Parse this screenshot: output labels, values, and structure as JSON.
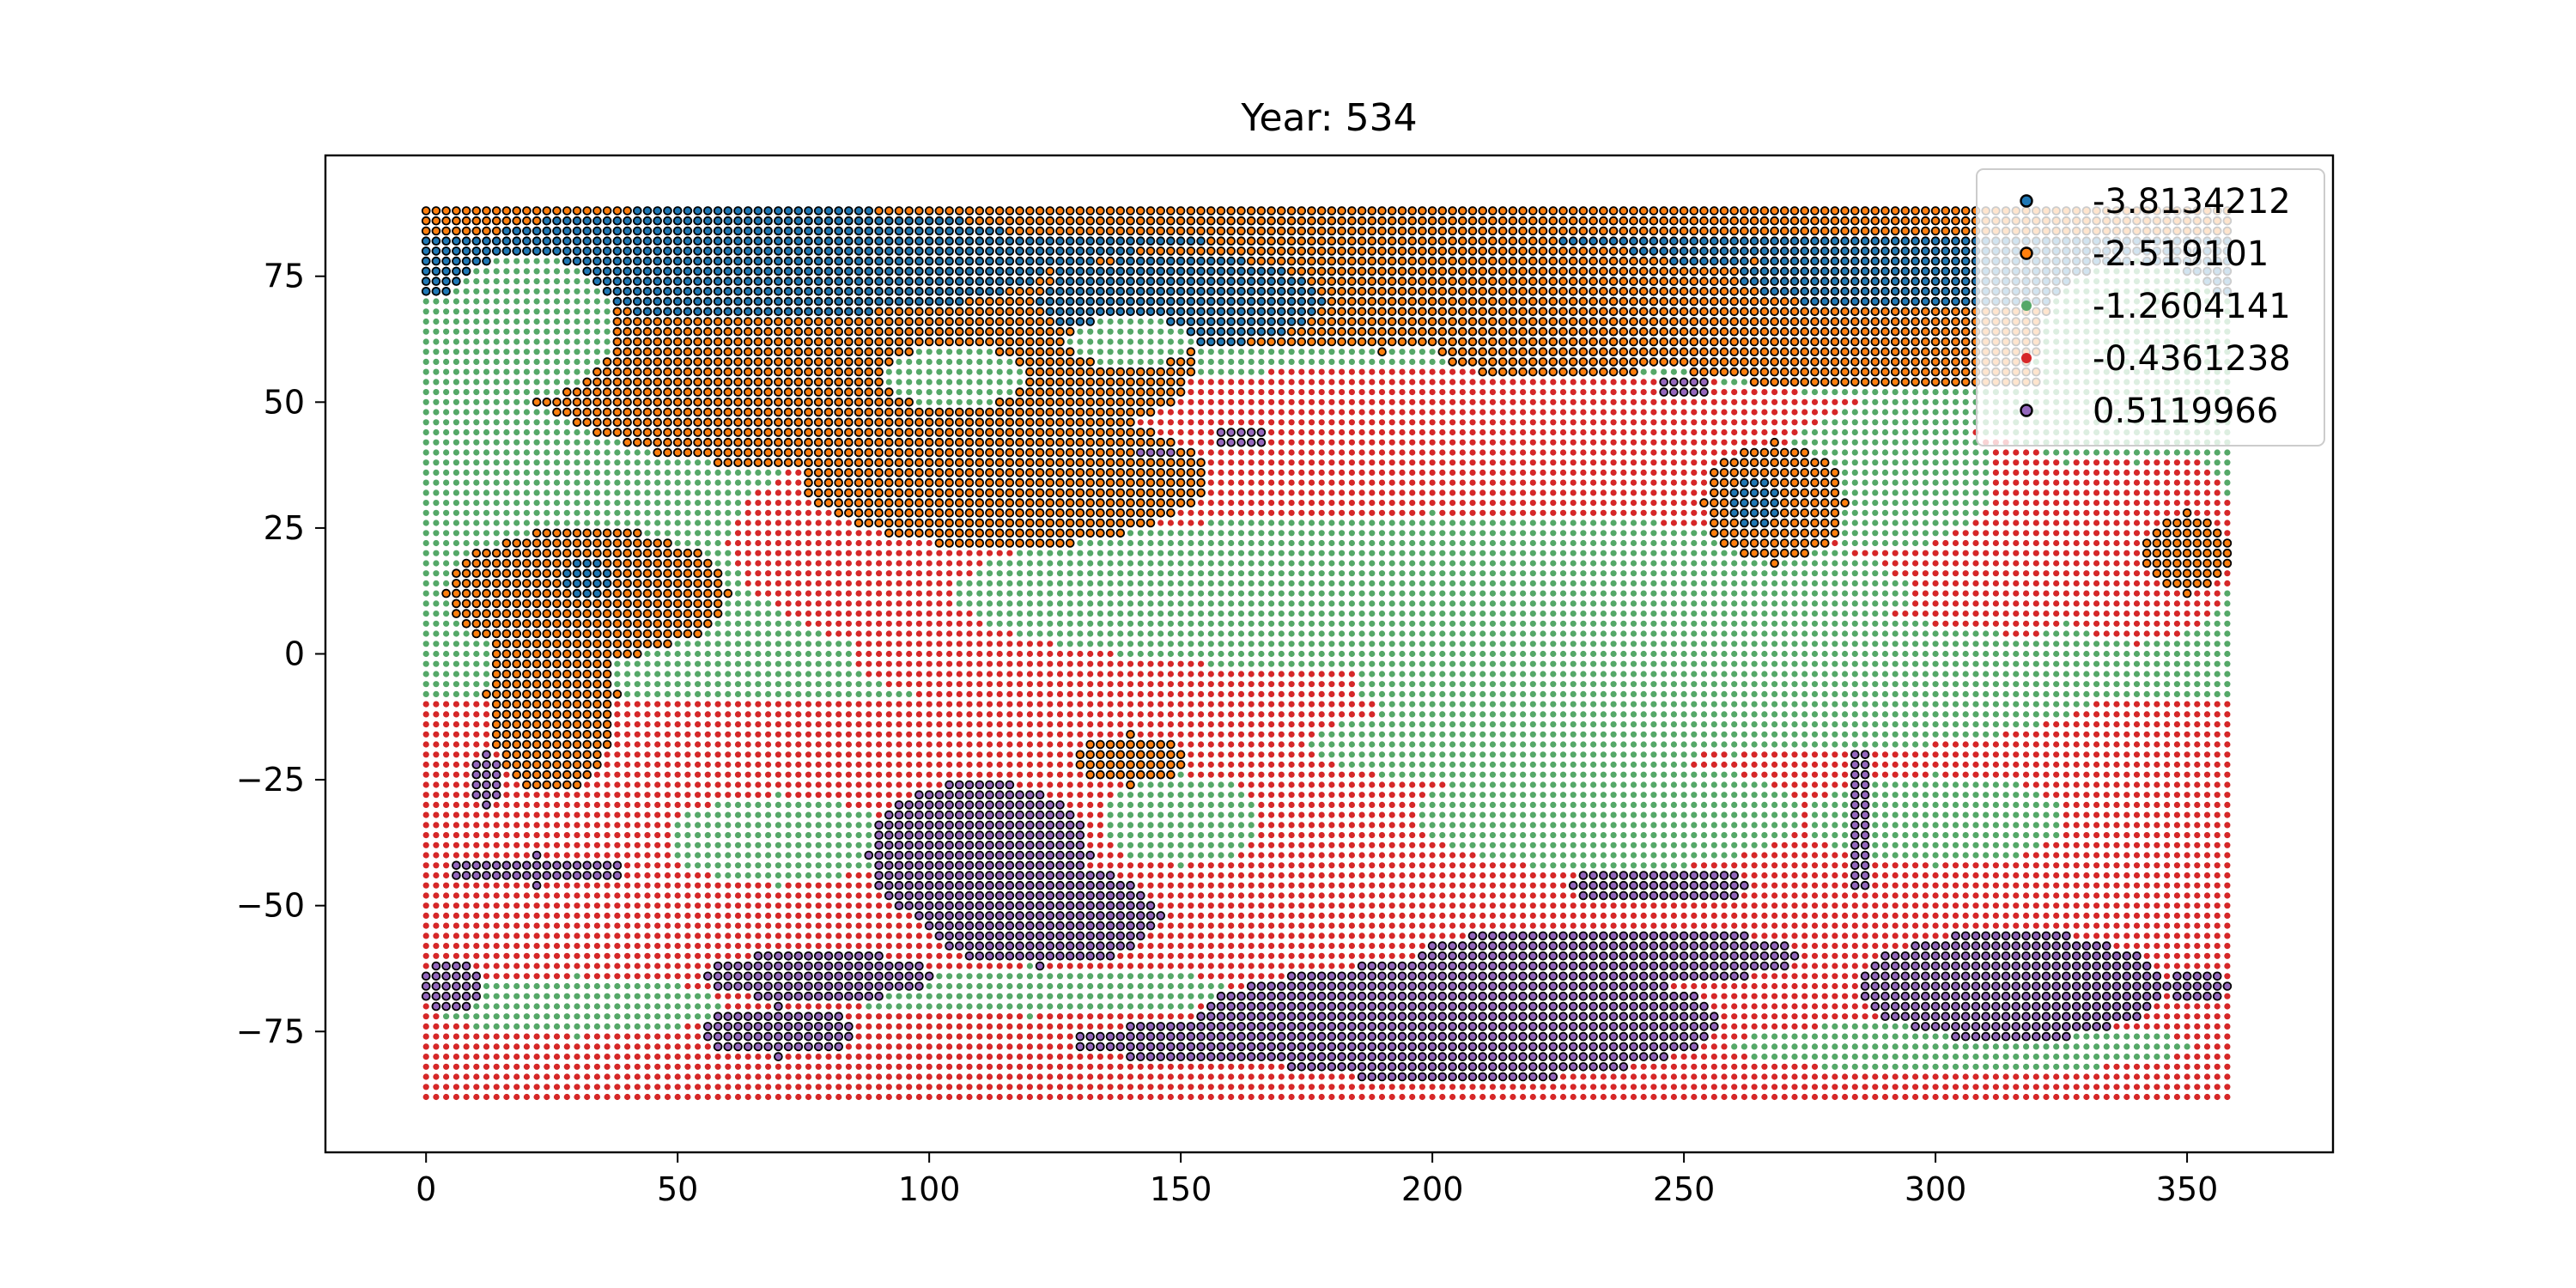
{
  "chart_data": {
    "type": "scatter",
    "title": "Year: 534",
    "xlabel": "",
    "ylabel": "",
    "xlim": [
      -20,
      379
    ],
    "ylim": [
      -99,
      99
    ],
    "xticks": [
      0,
      50,
      100,
      150,
      200,
      250,
      300,
      350
    ],
    "yticks": [
      -75,
      -50,
      -25,
      0,
      25,
      50,
      75
    ],
    "grid": false,
    "legend_placement": "top-right",
    "grid_spacing_deg": 2,
    "series": [
      {
        "name": "-3.8134212",
        "color": "#1f77b4",
        "marker": "edged circle",
        "cluster_value": -3.8134212
      },
      {
        "name": "-2.519101",
        "color": "#ff7f0e",
        "marker": "edged circle",
        "cluster_value": -2.519101
      },
      {
        "name": "-1.2604141",
        "color": "#55a868",
        "marker": "small circle",
        "cluster_value": -1.2604141
      },
      {
        "name": "-0.4361238",
        "color": "#d62728",
        "marker": "small circle",
        "cluster_value": -0.4361238
      },
      {
        "name": "0.5119966",
        "color": "#9467bd",
        "marker": "edged circle",
        "cluster_value": 0.5119966
      }
    ],
    "regions": [
      {
        "series": 2,
        "shape": "rect",
        "x": [
          0,
          358
        ],
        "y": [
          -88,
          88
        ]
      },
      {
        "series": 3,
        "shape": "rect",
        "x": [
          0,
          358
        ],
        "y": [
          -88,
          -10
        ]
      },
      {
        "series": 3,
        "shape": "ellipse",
        "cx": 200,
        "cy": 22,
        "rx": 140,
        "ry": 35
      },
      {
        "series": 3,
        "shape": "ellipse",
        "cx": 130,
        "cy": 0,
        "rx": 45,
        "ry": 12
      },
      {
        "series": 2,
        "shape": "ellipse",
        "cx": 200,
        "cy": 12,
        "rx": 95,
        "ry": 16
      },
      {
        "series": 2,
        "shape": "ellipse",
        "cx": 260,
        "cy": -6,
        "rx": 75,
        "ry": 14
      },
      {
        "series": 2,
        "shape": "ellipse",
        "cx": 290,
        "cy": 35,
        "rx": 22,
        "ry": 14
      },
      {
        "series": 3,
        "shape": "ellipse",
        "cx": 340,
        "cy": 22,
        "rx": 20,
        "ry": 20
      },
      {
        "series": 2,
        "shape": "ellipse",
        "cx": 215,
        "cy": -18,
        "rx": 40,
        "ry": 8
      },
      {
        "series": 2,
        "shape": "ellipse",
        "cx": 70,
        "cy": -37,
        "rx": 22,
        "ry": 9
      },
      {
        "series": 2,
        "shape": "ellipse",
        "cx": 150,
        "cy": -33,
        "rx": 16,
        "ry": 9
      },
      {
        "series": 2,
        "shape": "ellipse",
        "cx": 235,
        "cy": -32,
        "rx": 38,
        "ry": 11
      },
      {
        "series": 2,
        "shape": "ellipse",
        "cx": 300,
        "cy": -33,
        "rx": 26,
        "ry": 9
      },
      {
        "series": 2,
        "shape": "ellipse",
        "cx": 30,
        "cy": -70,
        "rx": 28,
        "ry": 6
      },
      {
        "series": 2,
        "shape": "ellipse",
        "cx": 120,
        "cy": -67,
        "rx": 40,
        "ry": 5
      },
      {
        "series": 2,
        "shape": "ellipse",
        "cx": 305,
        "cy": -78,
        "rx": 45,
        "ry": 5
      },
      {
        "series": 0,
        "shape": "rect",
        "x": [
          0,
          358
        ],
        "y": [
          72,
          88
        ]
      },
      {
        "series": 1,
        "shape": "rect",
        "x": [
          0,
          358
        ],
        "y": [
          84,
          88
        ]
      },
      {
        "series": 1,
        "shape": "ellipse",
        "cx": 85,
        "cy": 58,
        "rx": 68,
        "ry": 22
      },
      {
        "series": 1,
        "shape": "ellipse",
        "cx": 115,
        "cy": 35,
        "rx": 40,
        "ry": 14
      },
      {
        "series": 1,
        "shape": "ellipse",
        "cx": 190,
        "cy": 72,
        "rx": 65,
        "ry": 12
      },
      {
        "series": 1,
        "shape": "ellipse",
        "cx": 295,
        "cy": 66,
        "rx": 63,
        "ry": 14
      },
      {
        "series": 1,
        "shape": "ellipse",
        "cx": 225,
        "cy": 62,
        "rx": 25,
        "ry": 8
      },
      {
        "series": 0,
        "shape": "ellipse",
        "cx": 65,
        "cy": 78,
        "rx": 60,
        "ry": 11
      },
      {
        "series": 0,
        "shape": "ellipse",
        "cx": 150,
        "cy": 70,
        "rx": 28,
        "ry": 9
      },
      {
        "series": 0,
        "shape": "ellipse",
        "cx": 305,
        "cy": 75,
        "rx": 45,
        "ry": 7
      },
      {
        "series": 2,
        "shape": "ellipse",
        "cx": 20,
        "cy": 65,
        "rx": 18,
        "ry": 14
      },
      {
        "series": 2,
        "shape": "ellipse",
        "cx": 105,
        "cy": 55,
        "rx": 14,
        "ry": 6
      },
      {
        "series": 2,
        "shape": "ellipse",
        "cx": 140,
        "cy": 62,
        "rx": 12,
        "ry": 5
      },
      {
        "series": 2,
        "shape": "ellipse",
        "cx": 340,
        "cy": 58,
        "rx": 20,
        "ry": 20
      },
      {
        "series": 1,
        "shape": "ellipse",
        "cx": 32,
        "cy": 12,
        "rx": 28,
        "ry": 13
      },
      {
        "series": 1,
        "shape": "ellipse",
        "cx": 25,
        "cy": -8,
        "rx": 13,
        "ry": 20
      },
      {
        "series": 0,
        "shape": "ellipse",
        "cx": 32,
        "cy": 15,
        "rx": 6,
        "ry": 4
      },
      {
        "series": 1,
        "shape": "ellipse",
        "cx": 268,
        "cy": 30,
        "rx": 14,
        "ry": 12
      },
      {
        "series": 0,
        "shape": "ellipse",
        "cx": 264,
        "cy": 30,
        "rx": 5,
        "ry": 5
      },
      {
        "series": 1,
        "shape": "ellipse",
        "cx": 350,
        "cy": 20,
        "rx": 9,
        "ry": 8
      },
      {
        "series": 1,
        "shape": "ellipse",
        "cx": 140,
        "cy": -21,
        "rx": 12,
        "ry": 5
      },
      {
        "series": 1,
        "shape": "ellipse",
        "cx": 330,
        "cy": -69,
        "rx": 10,
        "ry": 3
      },
      {
        "series": 4,
        "shape": "ellipse",
        "cx": 110,
        "cy": -40,
        "rx": 22,
        "ry": 15
      },
      {
        "series": 4,
        "shape": "ellipse",
        "cx": 122,
        "cy": -52,
        "rx": 24,
        "ry": 10
      },
      {
        "series": 4,
        "shape": "ellipse",
        "cx": 78,
        "cy": -64,
        "rx": 22,
        "ry": 5
      },
      {
        "series": 4,
        "shape": "ellipse",
        "cx": 70,
        "cy": -75,
        "rx": 15,
        "ry": 5
      },
      {
        "series": 4,
        "shape": "ellipse",
        "cx": 205,
        "cy": -73,
        "rx": 52,
        "ry": 12
      },
      {
        "series": 4,
        "shape": "ellipse",
        "cx": 235,
        "cy": -60,
        "rx": 38,
        "ry": 6
      },
      {
        "series": 4,
        "shape": "ellipse",
        "cx": 245,
        "cy": -46,
        "rx": 18,
        "ry": 4
      },
      {
        "series": 4,
        "shape": "ellipse",
        "cx": 315,
        "cy": -66,
        "rx": 30,
        "ry": 11
      },
      {
        "series": 4,
        "shape": "ellipse",
        "cx": 165,
        "cy": -77,
        "rx": 38,
        "ry": 4
      },
      {
        "series": 4,
        "shape": "ellipse",
        "cx": 285,
        "cy": -33,
        "rx": 3,
        "ry": 14
      },
      {
        "series": 4,
        "shape": "ellipse",
        "cx": 5,
        "cy": -66,
        "rx": 6,
        "ry": 5
      },
      {
        "series": 4,
        "shape": "ellipse",
        "cx": 22,
        "cy": -43,
        "rx": 18,
        "ry": 3
      },
      {
        "series": 4,
        "shape": "ellipse",
        "cx": 12,
        "cy": -25,
        "rx": 4,
        "ry": 5
      },
      {
        "series": 4,
        "shape": "ellipse",
        "cx": 352,
        "cy": -66,
        "rx": 6,
        "ry": 3
      },
      {
        "series": 4,
        "shape": "ellipse",
        "cx": 250,
        "cy": 53,
        "rx": 6,
        "ry": 2
      },
      {
        "series": 4,
        "shape": "ellipse",
        "cx": 162,
        "cy": 43,
        "rx": 5,
        "ry": 2
      },
      {
        "series": 4,
        "shape": "ellipse",
        "cx": 145,
        "cy": 40,
        "rx": 3,
        "ry": 1
      }
    ]
  }
}
